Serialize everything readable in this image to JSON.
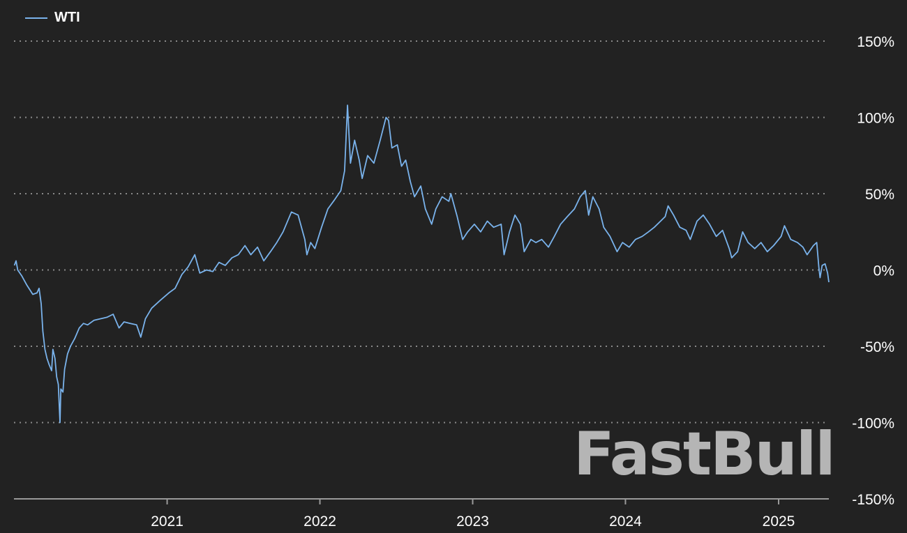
{
  "legend": {
    "label": "WTI",
    "color": "#7ab3ec"
  },
  "watermark": "FastBull",
  "colors": {
    "background": "#222222",
    "grid": "#8a8a8a",
    "axis": "#9a9a9a",
    "text": "#ffffff",
    "series": "#7ab3ec"
  },
  "chart_data": {
    "type": "line",
    "title": "",
    "xlabel": "",
    "ylabel": "",
    "grid": true,
    "legend_position": "top-left",
    "y_axis_side": "right",
    "ylim": [
      -150,
      150
    ],
    "xlim": [
      "2020-01-01",
      "2025-05-01"
    ],
    "y_ticks": [
      150,
      100,
      50,
      0,
      -50,
      -100,
      -150
    ],
    "y_tick_labels": [
      "150%",
      "100%",
      "50%",
      "0%",
      "-50%",
      "-100%",
      "-150%"
    ],
    "x_ticks": [
      "2021-01-01",
      "2022-01-01",
      "2023-01-01",
      "2024-01-01",
      "2025-01-01"
    ],
    "x_tick_labels": [
      "2021",
      "2022",
      "2023",
      "2024",
      "2025"
    ],
    "series": [
      {
        "name": "WTI",
        "points": [
          [
            "2020-01-02",
            3
          ],
          [
            "2020-01-06",
            6
          ],
          [
            "2020-01-10",
            0
          ],
          [
            "2020-01-20",
            -4
          ],
          [
            "2020-02-01",
            -10
          ],
          [
            "2020-02-15",
            -16
          ],
          [
            "2020-02-25",
            -15
          ],
          [
            "2020-03-01",
            -12
          ],
          [
            "2020-03-06",
            -22
          ],
          [
            "2020-03-10",
            -40
          ],
          [
            "2020-03-15",
            -52
          ],
          [
            "2020-03-20",
            -58
          ],
          [
            "2020-03-25",
            -62
          ],
          [
            "2020-03-31",
            -66
          ],
          [
            "2020-04-03",
            -52
          ],
          [
            "2020-04-08",
            -58
          ],
          [
            "2020-04-12",
            -70
          ],
          [
            "2020-04-16",
            -75
          ],
          [
            "2020-04-20",
            -100
          ],
          [
            "2020-04-22",
            -78
          ],
          [
            "2020-04-27",
            -80
          ],
          [
            "2020-05-01",
            -65
          ],
          [
            "2020-05-08",
            -55
          ],
          [
            "2020-05-15",
            -50
          ],
          [
            "2020-05-25",
            -45
          ],
          [
            "2020-06-05",
            -38
          ],
          [
            "2020-06-15",
            -35
          ],
          [
            "2020-06-25",
            -36
          ],
          [
            "2020-07-10",
            -33
          ],
          [
            "2020-07-25",
            -32
          ],
          [
            "2020-08-10",
            -31
          ],
          [
            "2020-08-25",
            -29
          ],
          [
            "2020-09-08",
            -38
          ],
          [
            "2020-09-20",
            -34
          ],
          [
            "2020-10-05",
            -35
          ],
          [
            "2020-10-20",
            -36
          ],
          [
            "2020-10-30",
            -44
          ],
          [
            "2020-11-10",
            -32
          ],
          [
            "2020-11-25",
            -25
          ],
          [
            "2020-12-15",
            -20
          ],
          [
            "2021-01-05",
            -15
          ],
          [
            "2021-01-20",
            -12
          ],
          [
            "2021-02-05",
            -3
          ],
          [
            "2021-02-20",
            2
          ],
          [
            "2021-03-08",
            10
          ],
          [
            "2021-03-20",
            -2
          ],
          [
            "2021-04-05",
            0
          ],
          [
            "2021-04-20",
            -1
          ],
          [
            "2021-05-05",
            5
          ],
          [
            "2021-05-20",
            3
          ],
          [
            "2021-06-05",
            8
          ],
          [
            "2021-06-20",
            10
          ],
          [
            "2021-07-06",
            16
          ],
          [
            "2021-07-20",
            10
          ],
          [
            "2021-08-05",
            15
          ],
          [
            "2021-08-20",
            6
          ],
          [
            "2021-09-05",
            12
          ],
          [
            "2021-09-20",
            18
          ],
          [
            "2021-10-05",
            25
          ],
          [
            "2021-10-25",
            38
          ],
          [
            "2021-11-10",
            36
          ],
          [
            "2021-11-26",
            20
          ],
          [
            "2021-12-01",
            10
          ],
          [
            "2021-12-10",
            18
          ],
          [
            "2021-12-20",
            14
          ],
          [
            "2022-01-05",
            28
          ],
          [
            "2022-01-20",
            40
          ],
          [
            "2022-02-05",
            46
          ],
          [
            "2022-02-20",
            52
          ],
          [
            "2022-03-01",
            65
          ],
          [
            "2022-03-08",
            108
          ],
          [
            "2022-03-15",
            70
          ],
          [
            "2022-03-25",
            85
          ],
          [
            "2022-04-05",
            72
          ],
          [
            "2022-04-12",
            60
          ],
          [
            "2022-04-25",
            75
          ],
          [
            "2022-05-10",
            70
          ],
          [
            "2022-05-25",
            85
          ],
          [
            "2022-06-08",
            100
          ],
          [
            "2022-06-14",
            98
          ],
          [
            "2022-06-22",
            80
          ],
          [
            "2022-07-05",
            82
          ],
          [
            "2022-07-15",
            68
          ],
          [
            "2022-07-25",
            72
          ],
          [
            "2022-08-05",
            58
          ],
          [
            "2022-08-15",
            48
          ],
          [
            "2022-08-30",
            55
          ],
          [
            "2022-09-10",
            40
          ],
          [
            "2022-09-25",
            30
          ],
          [
            "2022-10-05",
            40
          ],
          [
            "2022-10-20",
            48
          ],
          [
            "2022-11-05",
            45
          ],
          [
            "2022-11-10",
            50
          ],
          [
            "2022-11-25",
            35
          ],
          [
            "2022-12-08",
            20
          ],
          [
            "2022-12-20",
            25
          ],
          [
            "2023-01-05",
            30
          ],
          [
            "2023-01-20",
            25
          ],
          [
            "2023-02-05",
            32
          ],
          [
            "2023-02-20",
            28
          ],
          [
            "2023-03-10",
            30
          ],
          [
            "2023-03-17",
            10
          ],
          [
            "2023-03-30",
            25
          ],
          [
            "2023-04-12",
            36
          ],
          [
            "2023-04-25",
            30
          ],
          [
            "2023-05-04",
            12
          ],
          [
            "2023-05-20",
            20
          ],
          [
            "2023-06-01",
            18
          ],
          [
            "2023-06-15",
            20
          ],
          [
            "2023-07-01",
            15
          ],
          [
            "2023-07-15",
            22
          ],
          [
            "2023-07-30",
            30
          ],
          [
            "2023-08-15",
            35
          ],
          [
            "2023-09-01",
            40
          ],
          [
            "2023-09-15",
            48
          ],
          [
            "2023-09-27",
            52
          ],
          [
            "2023-10-05",
            36
          ],
          [
            "2023-10-15",
            48
          ],
          [
            "2023-10-30",
            40
          ],
          [
            "2023-11-10",
            28
          ],
          [
            "2023-11-25",
            22
          ],
          [
            "2023-12-12",
            12
          ],
          [
            "2023-12-25",
            18
          ],
          [
            "2024-01-10",
            15
          ],
          [
            "2024-01-25",
            20
          ],
          [
            "2024-02-10",
            22
          ],
          [
            "2024-02-25",
            25
          ],
          [
            "2024-03-10",
            28
          ],
          [
            "2024-03-25",
            32
          ],
          [
            "2024-04-05",
            35
          ],
          [
            "2024-04-12",
            42
          ],
          [
            "2024-04-25",
            36
          ],
          [
            "2024-05-10",
            28
          ],
          [
            "2024-05-25",
            26
          ],
          [
            "2024-06-04",
            20
          ],
          [
            "2024-06-20",
            32
          ],
          [
            "2024-07-05",
            36
          ],
          [
            "2024-07-20",
            30
          ],
          [
            "2024-08-05",
            22
          ],
          [
            "2024-08-20",
            26
          ],
          [
            "2024-09-05",
            14
          ],
          [
            "2024-09-11",
            8
          ],
          [
            "2024-09-25",
            12
          ],
          [
            "2024-10-07",
            25
          ],
          [
            "2024-10-20",
            18
          ],
          [
            "2024-11-05",
            14
          ],
          [
            "2024-11-20",
            18
          ],
          [
            "2024-12-05",
            12
          ],
          [
            "2024-12-20",
            16
          ],
          [
            "2025-01-07",
            22
          ],
          [
            "2025-01-15",
            29
          ],
          [
            "2025-01-30",
            20
          ],
          [
            "2025-02-15",
            18
          ],
          [
            "2025-02-28",
            15
          ],
          [
            "2025-03-10",
            10
          ],
          [
            "2025-03-25",
            16
          ],
          [
            "2025-04-02",
            18
          ],
          [
            "2025-04-07",
            2
          ],
          [
            "2025-04-10",
            -5
          ],
          [
            "2025-04-15",
            3
          ],
          [
            "2025-04-22",
            4
          ],
          [
            "2025-04-28",
            -2
          ],
          [
            "2025-05-01",
            -8
          ]
        ]
      }
    ]
  }
}
